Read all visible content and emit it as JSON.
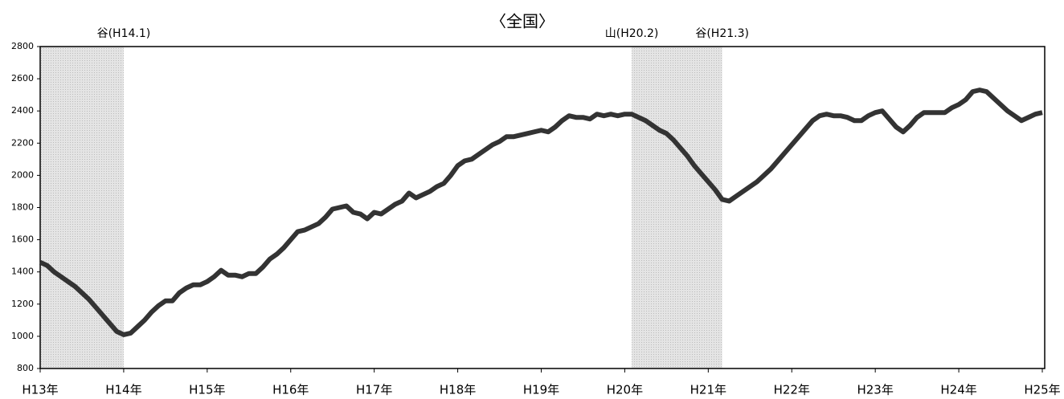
{
  "chart_data": {
    "type": "line",
    "title": "〈全国〉",
    "categories": [
      "H13年",
      null,
      null,
      null,
      null,
      null,
      null,
      null,
      null,
      null,
      null,
      null,
      "H14年",
      null,
      null,
      null,
      null,
      null,
      null,
      null,
      null,
      null,
      null,
      null,
      "H15年",
      null,
      null,
      null,
      null,
      null,
      null,
      null,
      null,
      null,
      null,
      null,
      "H16年",
      null,
      null,
      null,
      null,
      null,
      null,
      null,
      null,
      null,
      null,
      null,
      "H17年",
      null,
      null,
      null,
      null,
      null,
      null,
      null,
      null,
      null,
      null,
      null,
      "H18年",
      null,
      null,
      null,
      null,
      null,
      null,
      null,
      null,
      null,
      null,
      null,
      "H19年",
      null,
      null,
      null,
      null,
      null,
      null,
      null,
      null,
      null,
      null,
      null,
      "H20年",
      null,
      null,
      null,
      null,
      null,
      null,
      null,
      null,
      null,
      null,
      null,
      "H21年",
      null,
      null,
      null,
      null,
      null,
      null,
      null,
      null,
      null,
      null,
      null,
      "H22年",
      null,
      null,
      null,
      null,
      null,
      null,
      null,
      null,
      null,
      null,
      null,
      "H23年",
      null,
      null,
      null,
      null,
      null,
      null,
      null,
      null,
      null,
      null,
      null,
      "H24年",
      null,
      null,
      null,
      null,
      null,
      null,
      null,
      null,
      null,
      null,
      null,
      "H25年"
    ],
    "values": [
      1460,
      1440,
      1400,
      1370,
      1340,
      1310,
      1270,
      1230,
      1180,
      1130,
      1080,
      1030,
      1010,
      1020,
      1060,
      1100,
      1150,
      1190,
      1220,
      1220,
      1270,
      1300,
      1320,
      1320,
      1340,
      1370,
      1410,
      1380,
      1380,
      1370,
      1390,
      1390,
      1430,
      1480,
      1510,
      1550,
      1600,
      1650,
      1660,
      1680,
      1700,
      1740,
      1790,
      1800,
      1810,
      1770,
      1760,
      1730,
      1770,
      1760,
      1790,
      1820,
      1840,
      1890,
      1860,
      1880,
      1900,
      1930,
      1950,
      2000,
      2060,
      2090,
      2100,
      2130,
      2160,
      2190,
      2210,
      2240,
      2240,
      2250,
      2260,
      2270,
      2280,
      2270,
      2300,
      2340,
      2370,
      2360,
      2360,
      2350,
      2380,
      2370,
      2380,
      2370,
      2380,
      2380,
      2360,
      2340,
      2310,
      2280,
      2260,
      2220,
      2170,
      2120,
      2060,
      2010,
      1960,
      1910,
      1850,
      1840,
      1870,
      1900,
      1930,
      1960,
      2000,
      2040,
      2090,
      2140,
      2190,
      2240,
      2290,
      2340,
      2370,
      2380,
      2370,
      2370,
      2360,
      2340,
      2340,
      2370,
      2390,
      2400,
      2350,
      2300,
      2270,
      2310,
      2360,
      2390,
      2390,
      2390,
      2390,
      2420,
      2440,
      2470,
      2520,
      2530,
      2520,
      2480,
      2440,
      2400,
      2370,
      2340,
      2360,
      2380,
      2390
    ],
    "color": "#333333",
    "ylim": [
      800,
      2800
    ],
    "yticks": [
      800,
      1000,
      1200,
      1400,
      1600,
      1800,
      2000,
      2200,
      2400,
      2600,
      2800
    ],
    "shaded": [
      {
        "from": 0,
        "to": 12
      },
      {
        "from": 85,
        "to": 98
      }
    ],
    "annotations": [
      {
        "x": 12,
        "label": "谷(H14.1)"
      },
      {
        "x": 85,
        "label": "山(H20.2)"
      },
      {
        "x": 98,
        "label": "谷(H21.3)"
      }
    ]
  }
}
